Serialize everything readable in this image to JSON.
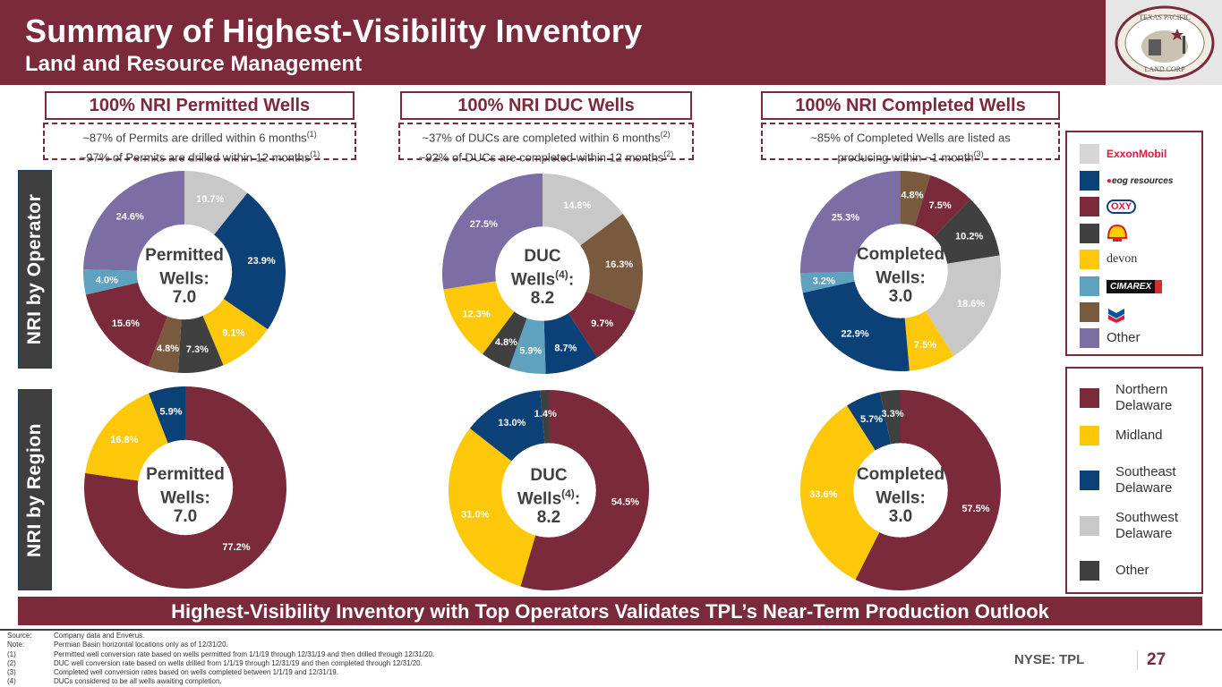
{
  "header": {
    "title": "Summary of Highest-Visibility Inventory",
    "subtitle": "Land and Resource Management",
    "logo": {
      "top_text": "TEXAS PACIFIC",
      "bottom_text": "LAND CORP",
      "est": "EST. 1888"
    }
  },
  "columns": [
    {
      "title": "100%  NRI Permitted Wells",
      "notes": [
        {
          "text": "~87% of Permits are drilled within 6 months",
          "ref": "(1)"
        },
        {
          "text": "~97% of Permits are drilled within 12 months",
          "ref": "(1)"
        }
      ]
    },
    {
      "title": "100% NRI DUC Wells",
      "notes": [
        {
          "text": "~37% of DUCs are completed within 6 months",
          "ref": "(2)"
        },
        {
          "text": "~92% of DUCs are completed within 12 months",
          "ref": "(2)"
        }
      ]
    },
    {
      "title": "100%  NRI Completed Wells",
      "notes": [
        {
          "text": "~85% of Completed Wells are listed as",
          "ref": ""
        },
        {
          "text": "producing within ~1 month",
          "ref": "(3)"
        }
      ]
    }
  ],
  "side_labels": {
    "operator": "NRI by Operator",
    "region": "NRI by Region"
  },
  "colors": {
    "brand": "#7b2a3b",
    "ExxonMobil": "#c8c8c8",
    "EOG": "#0b4177",
    "OXY": "#7b2a3b",
    "Shell": "#404040",
    "Devon": "#fdc80a",
    "Cimarex": "#5fa2c0",
    "Chevron": "#7a5a3e",
    "OtherOperator": "#7b6ea5",
    "Northern Delaware": "#7b2a3b",
    "Midland": "#fdc80a",
    "Southeast Delaware": "#0b4177",
    "Southwest Delaware": "#c8c8c8",
    "OtherRegion": "#404040"
  },
  "chart_data": [
    {
      "type": "pie",
      "variant": "donut",
      "title": "Permitted Wells: 7.0",
      "center": {
        "line1": "Permitted",
        "line2": "Wells:",
        "sup": "",
        "value": "7.0"
      },
      "group": "operator",
      "slices": [
        {
          "label": "ExxonMobil",
          "value": 10.7,
          "display": "10.7%"
        },
        {
          "label": "EOG Resources",
          "value": 23.9,
          "display": "23.9%"
        },
        {
          "label": "Devon",
          "value": 9.1,
          "display": "9.1%"
        },
        {
          "label": "Shell",
          "value": 7.3,
          "display": "7.3%"
        },
        {
          "label": "Chevron",
          "value": 4.8,
          "display": "4.8%"
        },
        {
          "label": "OXY",
          "value": 15.6,
          "display": "15.6%"
        },
        {
          "label": "Cimarex",
          "value": 4.0,
          "display": "4.0%"
        },
        {
          "label": "Other",
          "value": 24.6,
          "display": "24.6%"
        }
      ]
    },
    {
      "type": "pie",
      "variant": "donut",
      "title": "DUC Wells(4): 8.2",
      "center": {
        "line1": "DUC",
        "line2": "Wells",
        "sup": "(4)",
        "value": "8.2"
      },
      "group": "operator",
      "slices": [
        {
          "label": "ExxonMobil",
          "value": 14.8,
          "display": "14.8%"
        },
        {
          "label": "Chevron",
          "value": 16.3,
          "display": "16.3%"
        },
        {
          "label": "OXY",
          "value": 9.7,
          "display": "9.7%"
        },
        {
          "label": "EOG Resources",
          "value": 8.7,
          "display": "8.7%"
        },
        {
          "label": "Cimarex",
          "value": 5.9,
          "display": "5.9%"
        },
        {
          "label": "Shell",
          "value": 4.8,
          "display": "4.8%"
        },
        {
          "label": "Devon",
          "value": 12.3,
          "display": "12.3%"
        },
        {
          "label": "Other",
          "value": 27.5,
          "display": "27.5%"
        }
      ]
    },
    {
      "type": "pie",
      "variant": "donut",
      "title": "Completed Wells: 3.0",
      "center": {
        "line1": "Completed",
        "line2": "Wells:",
        "sup": "",
        "value": "3.0"
      },
      "group": "operator",
      "slices": [
        {
          "label": "Chevron",
          "value": 4.8,
          "display": "4.8%"
        },
        {
          "label": "OXY",
          "value": 7.5,
          "display": "7.5%"
        },
        {
          "label": "Shell",
          "value": 10.2,
          "display": "10.2%"
        },
        {
          "label": "ExxonMobil",
          "value": 18.6,
          "display": "18.6%"
        },
        {
          "label": "Devon",
          "value": 7.5,
          "display": "7.5%"
        },
        {
          "label": "EOG Resources",
          "value": 22.9,
          "display": "22.9%"
        },
        {
          "label": "Cimarex",
          "value": 3.2,
          "display": "3.2%"
        },
        {
          "label": "Other",
          "value": 25.3,
          "display": "25.3%"
        }
      ]
    },
    {
      "type": "pie",
      "variant": "donut",
      "title": "Permitted Wells: 7.0",
      "center": {
        "line1": "Permitted",
        "line2": "Wells:",
        "sup": "",
        "value": "7.0"
      },
      "group": "region",
      "slices": [
        {
          "label": "Northern Delaware",
          "value": 77.2,
          "display": "77.2%"
        },
        {
          "label": "Midland",
          "value": 16.8,
          "display": "16.8%"
        },
        {
          "label": "Southeast Delaware",
          "value": 5.9,
          "display": "5.9%"
        }
      ]
    },
    {
      "type": "pie",
      "variant": "donut",
      "title": "DUC Wells(4): 8.2",
      "center": {
        "line1": "DUC",
        "line2": "Wells",
        "sup": "(4)",
        "value": "8.2"
      },
      "group": "region",
      "slices": [
        {
          "label": "Northern Delaware",
          "value": 54.5,
          "display": "54.5%"
        },
        {
          "label": "Midland",
          "value": 31.0,
          "display": "31.0%"
        },
        {
          "label": "Southeast Delaware",
          "value": 13.0,
          "display": "13.0%"
        },
        {
          "label": "Other",
          "value": 1.4,
          "display": "1.4%"
        }
      ]
    },
    {
      "type": "pie",
      "variant": "donut",
      "title": "Completed Wells: 3.0",
      "center": {
        "line1": "Completed",
        "line2": "Wells:",
        "sup": "",
        "value": "3.0"
      },
      "group": "region",
      "slices": [
        {
          "label": "Northern Delaware",
          "value": 57.5,
          "display": "57.5%"
        },
        {
          "label": "Midland",
          "value": 33.6,
          "display": "33.6%"
        },
        {
          "label": "Southeast Delaware",
          "value": 5.7,
          "display": "5.7%"
        },
        {
          "label": "Other",
          "value": 3.3,
          "display": "3.3%"
        }
      ]
    }
  ],
  "operator_legend": [
    {
      "key": "ExxonMobil",
      "label": "ExxonMobil",
      "logo_color": "#e3173e"
    },
    {
      "key": "EOG",
      "label": "eog resources",
      "logo_color": "#222222"
    },
    {
      "key": "OXY",
      "label": "OXY",
      "logo_color": "#e3173e"
    },
    {
      "key": "Shell",
      "label": "Shell",
      "logo_color": "#dd1d21"
    },
    {
      "key": "Devon",
      "label": "devon",
      "logo_color": "#333333"
    },
    {
      "key": "Cimarex",
      "label": "CIMAREX",
      "logo_color": "#111111"
    },
    {
      "key": "Chevron",
      "label": "Chevron",
      "logo_color": "#0054a4"
    },
    {
      "key": "OtherOperator",
      "label": "Other",
      "logo_color": ""
    }
  ],
  "region_legend": [
    {
      "key": "Northern Delaware",
      "line1": "Northern",
      "line2": "Delaware"
    },
    {
      "key": "Midland",
      "line1": "Midland",
      "line2": ""
    },
    {
      "key": "Southeast Delaware",
      "line1": "Southeast",
      "line2": "Delaware"
    },
    {
      "key": "Southwest Delaware",
      "line1": "Southwest",
      "line2": "Delaware"
    },
    {
      "key": "OtherRegion",
      "line1": "Other",
      "line2": ""
    }
  ],
  "banner": "Highest-Visibility Inventory with Top Operators Validates TPL’s Near-Term Production Outlook",
  "footnotes": [
    {
      "key": "Source:",
      "text": "Company data and Enverus."
    },
    {
      "key": "Note:",
      "text": "Permian Basin horizontal locations only as of 12/31/20."
    },
    {
      "key": "(1)",
      "text": "Permitted well conversion rate based on wells permitted from 1/1/19 through 12/31/19 and then drilled through 12/31/20."
    },
    {
      "key": "(2)",
      "text": "DUC well conversion rate based on wells drilled from 1/1/19 through 12/31/19 and then completed through 12/31/20."
    },
    {
      "key": "(3)",
      "text": "Completed well conversion rates based on wells completed between 1/1/19 and 12/31/19."
    },
    {
      "key": "(4)",
      "text": "DUCs considered to be all wells awaiting completion."
    }
  ],
  "footer": {
    "ticker": "NYSE: TPL",
    "page": "27"
  }
}
